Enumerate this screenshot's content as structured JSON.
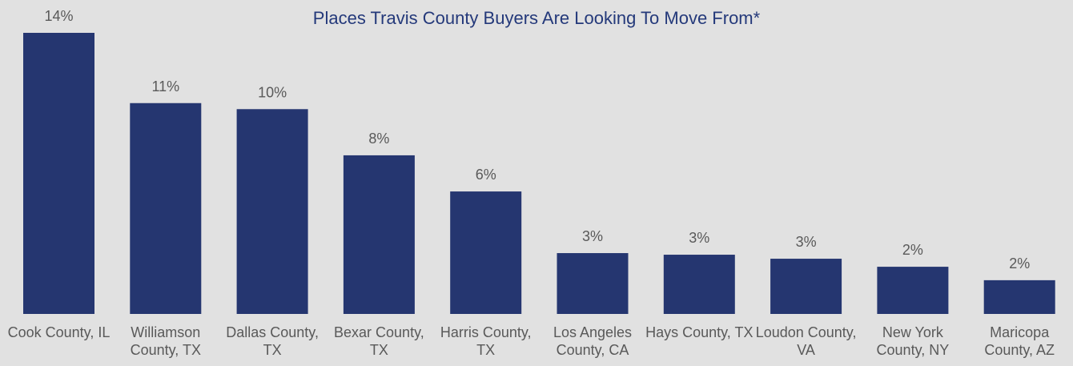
{
  "chart_data": {
    "type": "bar",
    "title": "Places Travis County Buyers Are Looking To Move From*",
    "categories": [
      "Cook County, IL",
      "Williamson County, TX",
      "Dallas County, TX",
      "Bexar County, TX",
      "Harris County, TX",
      "Los Angeles County, CA",
      "Hays County, TX",
      "Loudon County, VA",
      "New York County, NY",
      "Maricopa County, AZ"
    ],
    "values": [
      14,
      10.5,
      10.2,
      7.9,
      6.1,
      3.03,
      2.95,
      2.75,
      2.35,
      1.68
    ],
    "value_labels": [
      "14%",
      "11%",
      "10%",
      "8%",
      "6%",
      "3%",
      "3%",
      "3%",
      "2%",
      "2%"
    ],
    "color": "#253670"
  }
}
